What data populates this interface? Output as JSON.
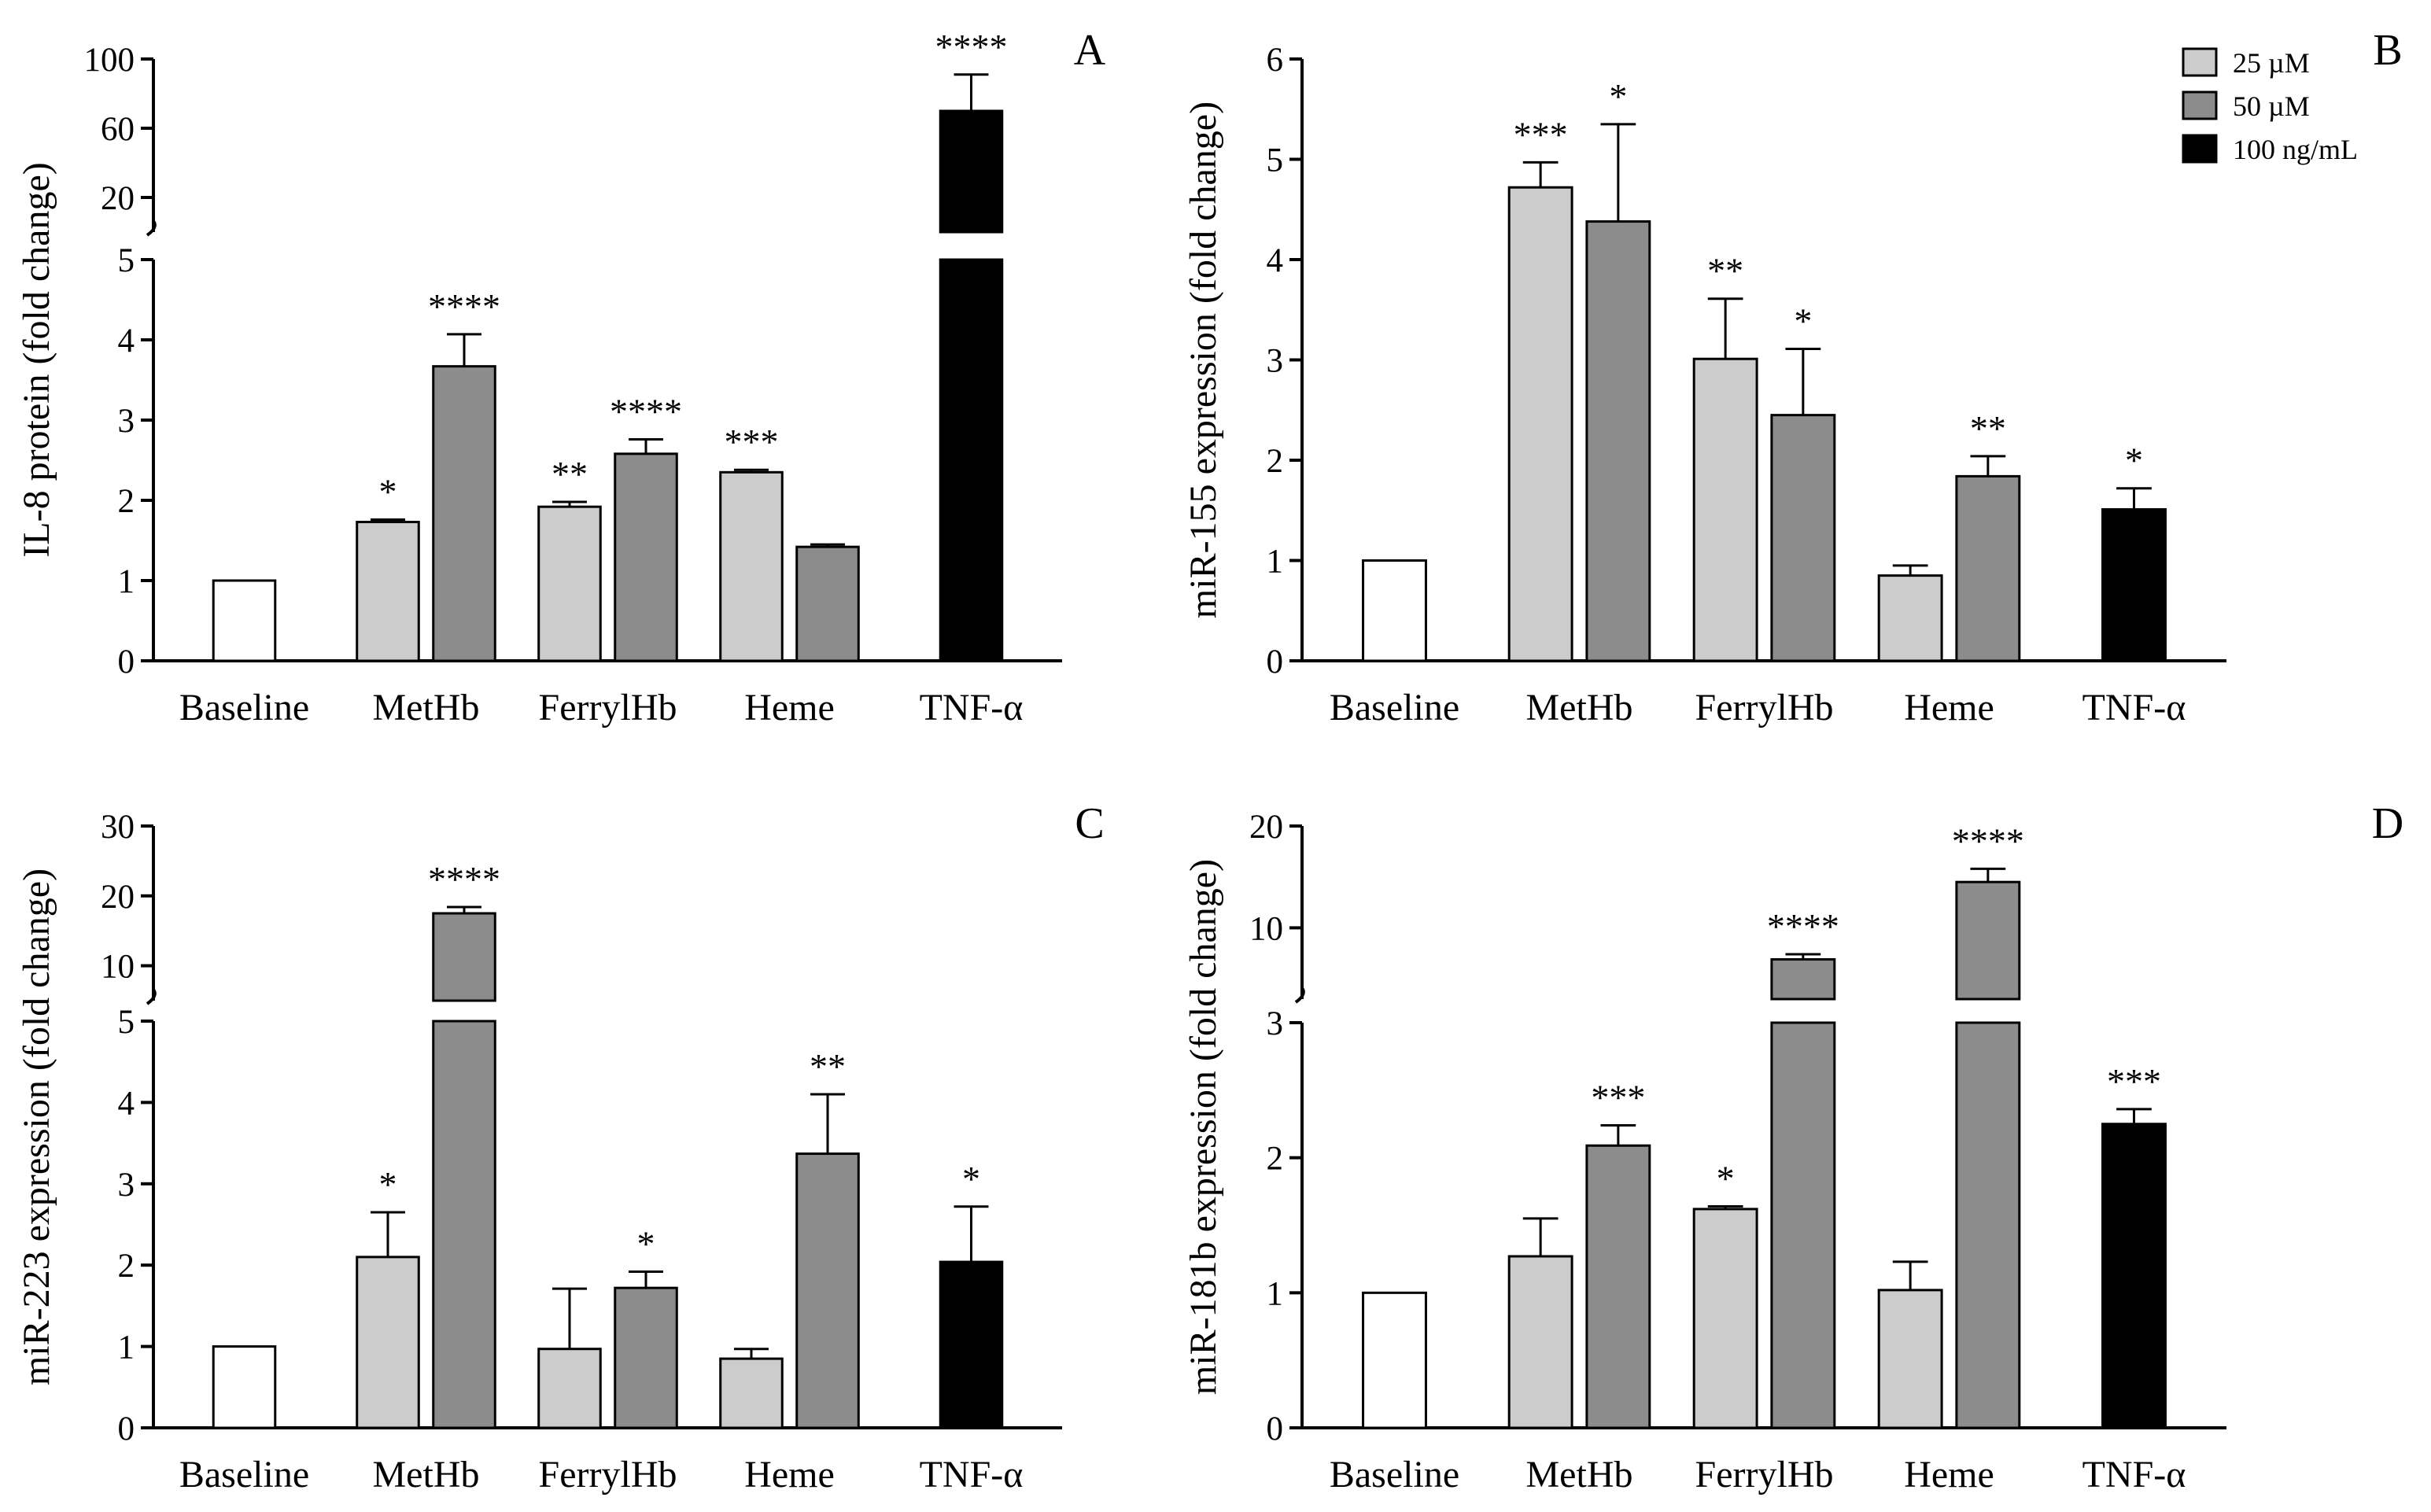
{
  "figure": {
    "legend": [
      {
        "label": "25 µM",
        "color": "#cccccc"
      },
      {
        "label": "50 µM",
        "color": "#8c8c8c"
      },
      {
        "label": "100 ng/mL",
        "color": "#000000"
      }
    ],
    "legend_position": "top-right"
  },
  "colors": {
    "baseline": "#ffffff",
    "dose_25": "#cccccc",
    "dose_50": "#8c8c8c",
    "tnf": "#000000",
    "axis": "#000000"
  },
  "chart_data": [
    {
      "type": "bar",
      "panel": "A",
      "ylabel": "IL-8 protein (fold change)",
      "categories": [
        "Baseline",
        "MetHb",
        "FerrylHb",
        "Heme",
        "TNF-α"
      ],
      "axis_break": true,
      "lower_ylim": [
        0,
        5
      ],
      "lower_ticks": [
        0,
        1,
        2,
        3,
        4,
        5
      ],
      "upper_ylim": [
        0,
        100
      ],
      "upper_ticks": [
        20,
        60,
        100
      ],
      "bars": [
        {
          "category": "Baseline",
          "series": "baseline",
          "value": 1.0,
          "error": 0,
          "sig": ""
        },
        {
          "category": "MetHb",
          "series": "25 µM",
          "value": 1.73,
          "error": 0.03,
          "sig": "*"
        },
        {
          "category": "MetHb",
          "series": "50 µM",
          "value": 3.67,
          "error": 0.4,
          "sig": "****"
        },
        {
          "category": "FerrylHb",
          "series": "25 µM",
          "value": 1.92,
          "error": 0.06,
          "sig": "**"
        },
        {
          "category": "FerrylHb",
          "series": "50 µM",
          "value": 2.58,
          "error": 0.18,
          "sig": "****"
        },
        {
          "category": "Heme",
          "series": "25 µM",
          "value": 2.35,
          "error": 0.03,
          "sig": "***"
        },
        {
          "category": "Heme",
          "series": "50 µM",
          "value": 1.42,
          "error": 0.03,
          "sig": ""
        },
        {
          "category": "TNF-α",
          "series": "100 ng/mL",
          "value": 70,
          "error": 21,
          "sig": "****"
        }
      ]
    },
    {
      "type": "bar",
      "panel": "B",
      "ylabel": "miR-155 expression (fold change)",
      "categories": [
        "Baseline",
        "MetHb",
        "FerrylHb",
        "Heme",
        "TNF-α"
      ],
      "axis_break": false,
      "lower_ylim": [
        0,
        6
      ],
      "lower_ticks": [
        0,
        1,
        2,
        3,
        4,
        5,
        6
      ],
      "bars": [
        {
          "category": "Baseline",
          "series": "baseline",
          "value": 1.0,
          "error": 0,
          "sig": ""
        },
        {
          "category": "MetHb",
          "series": "25 µM",
          "value": 4.72,
          "error": 0.25,
          "sig": "***"
        },
        {
          "category": "MetHb",
          "series": "50 µM",
          "value": 4.38,
          "error": 0.97,
          "sig": "*"
        },
        {
          "category": "FerrylHb",
          "series": "25 µM",
          "value": 3.01,
          "error": 0.6,
          "sig": "**"
        },
        {
          "category": "FerrylHb",
          "series": "50 µM",
          "value": 2.45,
          "error": 0.66,
          "sig": "*"
        },
        {
          "category": "Heme",
          "series": "25 µM",
          "value": 0.85,
          "error": 0.1,
          "sig": ""
        },
        {
          "category": "Heme",
          "series": "50 µM",
          "value": 1.84,
          "error": 0.2,
          "sig": "**"
        },
        {
          "category": "TNF-α",
          "series": "100 ng/mL",
          "value": 1.51,
          "error": 0.21,
          "sig": "*"
        }
      ]
    },
    {
      "type": "bar",
      "panel": "C",
      "ylabel": "miR-223 expression (fold change)",
      "categories": [
        "Baseline",
        "MetHb",
        "FerrylHb",
        "Heme",
        "TNF-α"
      ],
      "axis_break": true,
      "lower_ylim": [
        0,
        5
      ],
      "lower_ticks": [
        0,
        1,
        2,
        3,
        4,
        5
      ],
      "upper_ylim": [
        5,
        30
      ],
      "upper_ticks": [
        10,
        20,
        30
      ],
      "bars": [
        {
          "category": "Baseline",
          "series": "baseline",
          "value": 1.0,
          "error": 0,
          "sig": ""
        },
        {
          "category": "MetHb",
          "series": "25 µM",
          "value": 2.1,
          "error": 0.55,
          "sig": "*"
        },
        {
          "category": "MetHb",
          "series": "50 µM",
          "value": 17.5,
          "error": 0.9,
          "sig": "****"
        },
        {
          "category": "FerrylHb",
          "series": "25 µM",
          "value": 0.97,
          "error": 0.74,
          "sig": ""
        },
        {
          "category": "FerrylHb",
          "series": "50 µM",
          "value": 1.72,
          "error": 0.2,
          "sig": "*"
        },
        {
          "category": "Heme",
          "series": "25 µM",
          "value": 0.85,
          "error": 0.12,
          "sig": ""
        },
        {
          "category": "Heme",
          "series": "50 µM",
          "value": 3.37,
          "error": 0.73,
          "sig": "**"
        },
        {
          "category": "TNF-α",
          "series": "100 ng/mL",
          "value": 2.04,
          "error": 0.68,
          "sig": "*"
        }
      ]
    },
    {
      "type": "bar",
      "panel": "D",
      "ylabel": "miR-181b expression (fold change)",
      "categories": [
        "Baseline",
        "MetHb",
        "FerrylHb",
        "Heme",
        "TNF-α"
      ],
      "axis_break": true,
      "lower_ylim": [
        0,
        3
      ],
      "lower_ticks": [
        0,
        1,
        2,
        3
      ],
      "upper_ylim": [
        3,
        20
      ],
      "upper_ticks": [
        10,
        20
      ],
      "bars": [
        {
          "category": "Baseline",
          "series": "baseline",
          "value": 1.0,
          "error": 0,
          "sig": ""
        },
        {
          "category": "MetHb",
          "series": "25 µM",
          "value": 1.27,
          "error": 0.28,
          "sig": ""
        },
        {
          "category": "MetHb",
          "series": "50 µM",
          "value": 2.09,
          "error": 0.15,
          "sig": "***"
        },
        {
          "category": "FerrylHb",
          "series": "25 µM",
          "value": 1.62,
          "error": 0.02,
          "sig": "*"
        },
        {
          "category": "FerrylHb",
          "series": "50 µM",
          "value": 6.9,
          "error": 0.5,
          "sig": "****"
        },
        {
          "category": "Heme",
          "series": "25 µM",
          "value": 1.02,
          "error": 0.21,
          "sig": ""
        },
        {
          "category": "Heme",
          "series": "50 µM",
          "value": 14.5,
          "error": 1.3,
          "sig": "****"
        },
        {
          "category": "TNF-α",
          "series": "100 ng/mL",
          "value": 2.25,
          "error": 0.11,
          "sig": "***"
        }
      ]
    }
  ]
}
